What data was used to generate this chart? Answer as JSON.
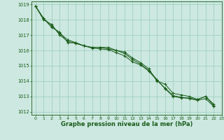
{
  "background_color": "#cce8e0",
  "grid_color": "#99ccbb",
  "line_color": "#1a5c1a",
  "text_color": "#1a5c1a",
  "xlabel": "Graphe pression niveau de la mer (hPa)",
  "xlim": [
    -0.5,
    23
  ],
  "ylim": [
    1011.8,
    1019.2
  ],
  "yticks": [
    1012,
    1013,
    1014,
    1015,
    1016,
    1017,
    1018,
    1019
  ],
  "xticks": [
    0,
    1,
    2,
    3,
    4,
    5,
    6,
    7,
    8,
    9,
    10,
    11,
    12,
    13,
    14,
    15,
    16,
    17,
    18,
    19,
    20,
    21,
    22,
    23
  ],
  "series": [
    [
      1018.9,
      1018.1,
      1017.6,
      1017.1,
      1016.7,
      1016.5,
      1016.3,
      1016.2,
      1016.2,
      1016.2,
      1016.0,
      1015.9,
      1015.5,
      1015.2,
      1014.8,
      1014.0,
      1013.8,
      1013.2,
      1013.1,
      1013.0,
      1012.8,
      1013.0,
      1012.5
    ],
    [
      1018.9,
      1018.0,
      1017.7,
      1017.0,
      1016.6,
      1016.45,
      1016.3,
      1016.15,
      1016.1,
      1016.05,
      1015.85,
      1015.65,
      1015.25,
      1015.05,
      1014.65,
      1014.05,
      1013.55,
      1013.05,
      1012.95,
      1012.85,
      1012.75,
      1012.85,
      1012.35
    ],
    [
      1018.9,
      1018.1,
      1017.5,
      1017.2,
      1016.5,
      1016.5,
      1016.3,
      1016.2,
      1016.2,
      1016.1,
      1016.0,
      1015.8,
      1015.4,
      1015.1,
      1014.7,
      1014.1,
      1013.5,
      1013.0,
      1012.9,
      1012.9,
      1012.8,
      1013.0,
      1012.4
    ]
  ]
}
